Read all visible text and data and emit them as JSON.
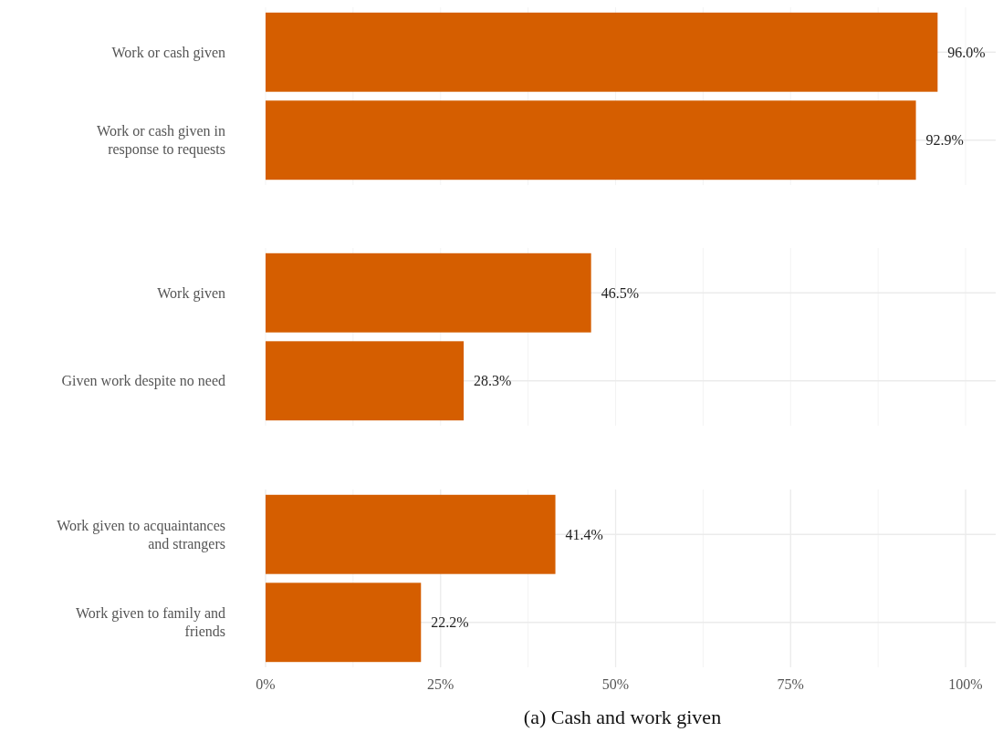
{
  "chart_data": [
    {
      "type": "bar",
      "orientation": "horizontal",
      "categories": [
        "Work or cash given",
        "Work or cash given in response to requests"
      ],
      "values": [
        96.0,
        92.9
      ],
      "value_labels": [
        "96.0%",
        "92.9%"
      ],
      "color": "#d55e00",
      "xlim": [
        0,
        104.3
      ],
      "xticks": [
        {
          "value": 0,
          "label": null
        },
        {
          "value": 12.5,
          "label": null
        },
        {
          "value": 25,
          "label": null
        },
        {
          "value": 37.5,
          "label": null
        },
        {
          "value": 50,
          "label": null
        },
        {
          "value": 62.5,
          "label": null
        },
        {
          "value": 75,
          "label": null
        },
        {
          "value": 87.5,
          "label": null
        },
        {
          "value": 100,
          "label": null
        }
      ],
      "grid": true,
      "tick_labels": "y"
    },
    {
      "type": "bar",
      "orientation": "horizontal",
      "categories": [
        "Work given",
        "Given work despite no need"
      ],
      "values": [
        46.5,
        28.3
      ],
      "value_labels": [
        "46.5%",
        "28.3%"
      ],
      "color": "#d55e00",
      "xlim": [
        0,
        104.3
      ],
      "xticks": [
        {
          "value": 0,
          "label": null
        },
        {
          "value": 12.5,
          "label": null
        },
        {
          "value": 25,
          "label": null
        },
        {
          "value": 37.5,
          "label": null
        },
        {
          "value": 50,
          "label": null
        },
        {
          "value": 62.5,
          "label": null
        },
        {
          "value": 75,
          "label": null
        },
        {
          "value": 87.5,
          "label": null
        },
        {
          "value": 100,
          "label": null
        }
      ],
      "grid": true,
      "tick_labels": "y"
    },
    {
      "type": "bar",
      "orientation": "horizontal",
      "categories": [
        "Work given to acquaintances and strangers",
        "Work given to family and friends"
      ],
      "values": [
        41.4,
        22.2
      ],
      "value_labels": [
        "41.4%",
        "22.2%"
      ],
      "color": "#d55e00",
      "xlim": [
        0,
        104.3
      ],
      "xticks": [
        {
          "value": 0,
          "label": "0%"
        },
        {
          "value": 12.5,
          "label": null
        },
        {
          "value": 25,
          "label": "25%"
        },
        {
          "value": 37.5,
          "label": null
        },
        {
          "value": 50,
          "label": "50%"
        },
        {
          "value": 62.5,
          "label": null
        },
        {
          "value": 75,
          "label": "75%"
        },
        {
          "value": 87.5,
          "label": null
        },
        {
          "value": 100,
          "label": "100%"
        }
      ],
      "grid": true,
      "annotations": [
        "(a) Cash and work given"
      ]
    }
  ]
}
